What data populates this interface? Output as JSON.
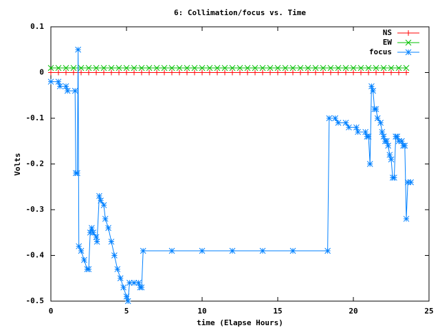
{
  "chart_data": {
    "type": "line",
    "title": "6: Collimation/focus vs. Time",
    "x_label": "time (Elapse Hours)",
    "y_label": "Volts",
    "xlim": [
      0,
      25
    ],
    "xticks": [
      0,
      5,
      10,
      15,
      20,
      25
    ],
    "ylim": [
      -0.5,
      0.1
    ],
    "yticks": [
      -0.5,
      -0.4,
      -0.3,
      -0.2,
      -0.1,
      0,
      0.1
    ],
    "legend": "top-right",
    "series": [
      {
        "name": "NS",
        "color": "#ff0000",
        "marker": "plus",
        "x": [
          0,
          0.5,
          1,
          1.5,
          2,
          2.5,
          3,
          3.5,
          4,
          4.5,
          5,
          5.5,
          6,
          6.5,
          7,
          7.5,
          8,
          8.5,
          9,
          9.5,
          10,
          10.5,
          11,
          11.5,
          12,
          12.5,
          13,
          13.5,
          14,
          14.5,
          15,
          15.5,
          16,
          16.5,
          17,
          17.5,
          18,
          18.5,
          19,
          19.5,
          20,
          20.5,
          21,
          21.5,
          22,
          22.5,
          23,
          23.5
        ],
        "values": [
          0,
          0,
          0,
          0,
          0,
          0,
          0,
          0,
          0,
          0,
          0,
          0,
          0,
          0,
          0,
          0,
          0,
          0,
          0,
          0,
          0,
          0,
          0,
          0,
          0,
          0,
          0,
          0,
          0,
          0,
          0,
          0,
          0,
          0,
          0,
          0,
          0,
          0,
          0,
          0,
          0,
          0,
          0,
          0,
          0,
          0,
          0,
          0
        ]
      },
      {
        "name": "EW",
        "color": "#00c000",
        "marker": "cross",
        "x": [
          0,
          0.5,
          1,
          1.5,
          2,
          2.5,
          3,
          3.5,
          4,
          4.5,
          5,
          5.5,
          6,
          6.5,
          7,
          7.5,
          8,
          8.5,
          9,
          9.5,
          10,
          10.5,
          11,
          11.5,
          12,
          12.5,
          13,
          13.5,
          14,
          14.5,
          15,
          15.5,
          16,
          16.5,
          17,
          17.5,
          18,
          18.5,
          19,
          19.5,
          20,
          20.5,
          21,
          21.5,
          22,
          22.5,
          23,
          23.5
        ],
        "values": [
          0.01,
          0.01,
          0.01,
          0.01,
          0.01,
          0.01,
          0.01,
          0.01,
          0.01,
          0.01,
          0.01,
          0.01,
          0.01,
          0.01,
          0.01,
          0.01,
          0.01,
          0.01,
          0.01,
          0.01,
          0.01,
          0.01,
          0.01,
          0.01,
          0.01,
          0.01,
          0.01,
          0.01,
          0.01,
          0.01,
          0.01,
          0.01,
          0.01,
          0.01,
          0.01,
          0.01,
          0.01,
          0.01,
          0.01,
          0.01,
          0.01,
          0.01,
          0.01,
          0.01,
          0.01,
          0.01,
          0.01,
          0.01
        ]
      },
      {
        "name": "focus",
        "color": "#0080ff",
        "marker": "star",
        "x": [
          0,
          0.5,
          0.6,
          1.0,
          1.1,
          1.6,
          1.65,
          1.75,
          1.8,
          1.85,
          2.0,
          2.2,
          2.4,
          2.5,
          2.6,
          2.7,
          2.8,
          3.0,
          3.05,
          3.2,
          3.3,
          3.5,
          3.6,
          3.8,
          4.0,
          4.2,
          4.4,
          4.6,
          4.8,
          5.0,
          5.1,
          5.2,
          5.5,
          5.8,
          5.9,
          6.0,
          6.1,
          8,
          10,
          12,
          14,
          16,
          18.3,
          18.4,
          18.8,
          19.0,
          19.5,
          19.7,
          20.2,
          20.3,
          20.8,
          20.9,
          21.0,
          21.1,
          21.2,
          21.3,
          21.4,
          21.5,
          21.6,
          21.8,
          21.9,
          22.0,
          22.1,
          22.2,
          22.3,
          22.4,
          22.5,
          22.6,
          22.7,
          22.8,
          22.9,
          23.0,
          23.2,
          23.3,
          23.4,
          23.5,
          23.6,
          23.8
        ],
        "values": [
          -0.02,
          -0.02,
          -0.03,
          -0.03,
          -0.04,
          -0.04,
          -0.22,
          -0.22,
          0.05,
          -0.38,
          -0.39,
          -0.41,
          -0.43,
          -0.43,
          -0.35,
          -0.34,
          -0.35,
          -0.36,
          -0.37,
          -0.27,
          -0.28,
          -0.29,
          -0.32,
          -0.34,
          -0.37,
          -0.4,
          -0.43,
          -0.45,
          -0.47,
          -0.49,
          -0.5,
          -0.46,
          -0.46,
          -0.46,
          -0.47,
          -0.47,
          -0.39,
          -0.39,
          -0.39,
          -0.39,
          -0.39,
          -0.39,
          -0.39,
          -0.1,
          -0.1,
          -0.11,
          -0.11,
          -0.12,
          -0.12,
          -0.13,
          -0.13,
          -0.14,
          -0.14,
          -0.2,
          -0.03,
          -0.04,
          -0.08,
          -0.08,
          -0.1,
          -0.11,
          -0.13,
          -0.14,
          -0.15,
          -0.15,
          -0.16,
          -0.18,
          -0.19,
          -0.23,
          -0.23,
          -0.14,
          -0.14,
          -0.15,
          -0.15,
          -0.16,
          -0.16,
          -0.32,
          -0.24,
          -0.24
        ]
      }
    ]
  }
}
